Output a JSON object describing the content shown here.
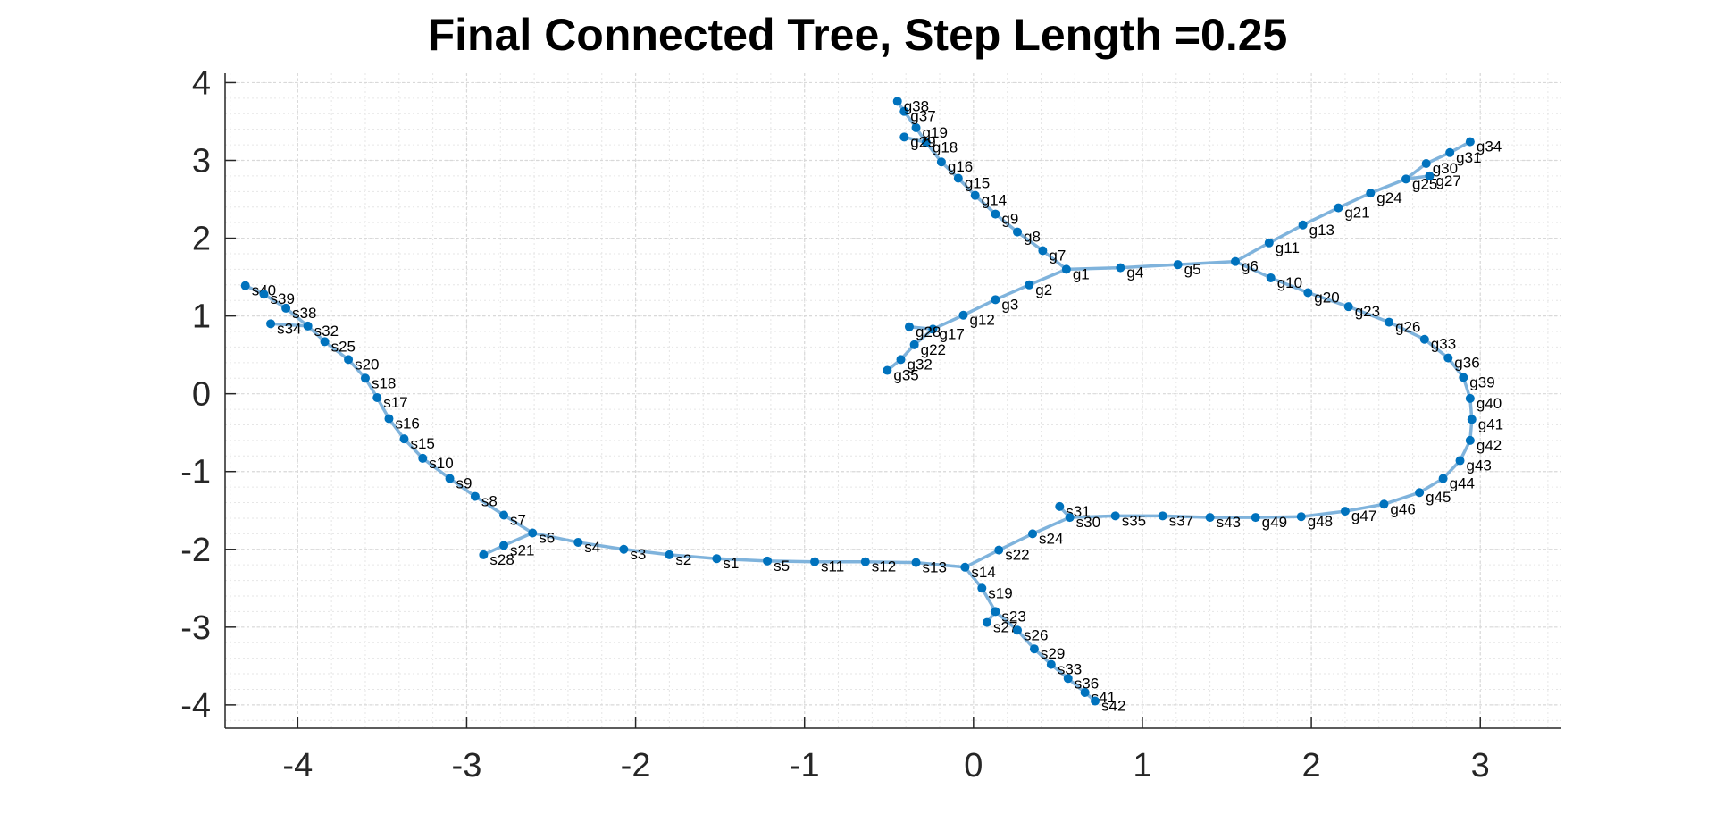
{
  "chart_data": {
    "type": "scatter",
    "title": "Final Connected Tree, Step Length =0.25",
    "xlabel": "",
    "ylabel": "",
    "xlim": [
      -4.43,
      3.48
    ],
    "ylim": [
      -4.3,
      4.12
    ],
    "xticks": [
      -4,
      -3,
      -2,
      -1,
      0,
      1,
      2,
      3
    ],
    "yticks": [
      -4,
      -3,
      -2,
      -1,
      0,
      1,
      2,
      3,
      4
    ],
    "grid": "on",
    "minor_grid": "on",
    "colors": {
      "node": "#0072BD",
      "edge": "#7FB3DC",
      "grid": "#E6E6E6",
      "axis": "#262626"
    },
    "nodes": [
      {
        "name": "s40",
        "x": -4.31,
        "y": 1.39
      },
      {
        "name": "s39",
        "x": -4.2,
        "y": 1.28
      },
      {
        "name": "s38",
        "x": -4.07,
        "y": 1.1
      },
      {
        "name": "s34",
        "x": -4.16,
        "y": 0.9
      },
      {
        "name": "s32",
        "x": -3.94,
        "y": 0.87
      },
      {
        "name": "s25",
        "x": -3.84,
        "y": 0.67
      },
      {
        "name": "s20",
        "x": -3.7,
        "y": 0.44
      },
      {
        "name": "s18",
        "x": -3.6,
        "y": 0.2
      },
      {
        "name": "s17",
        "x": -3.53,
        "y": -0.05
      },
      {
        "name": "s16",
        "x": -3.46,
        "y": -0.32
      },
      {
        "name": "s15",
        "x": -3.37,
        "y": -0.58
      },
      {
        "name": "s10",
        "x": -3.26,
        "y": -0.83
      },
      {
        "name": "s9",
        "x": -3.1,
        "y": -1.09
      },
      {
        "name": "s8",
        "x": -2.95,
        "y": -1.32
      },
      {
        "name": "s7",
        "x": -2.78,
        "y": -1.56
      },
      {
        "name": "s6",
        "x": -2.61,
        "y": -1.79
      },
      {
        "name": "s21",
        "x": -2.78,
        "y": -1.95
      },
      {
        "name": "s28",
        "x": -2.9,
        "y": -2.07
      },
      {
        "name": "s4",
        "x": -2.34,
        "y": -1.91
      },
      {
        "name": "s3",
        "x": -2.07,
        "y": -2.0
      },
      {
        "name": "s2",
        "x": -1.8,
        "y": -2.07
      },
      {
        "name": "s1",
        "x": -1.52,
        "y": -2.12
      },
      {
        "name": "s5",
        "x": -1.22,
        "y": -2.15
      },
      {
        "name": "s11",
        "x": -0.94,
        "y": -2.16
      },
      {
        "name": "s12",
        "x": -0.64,
        "y": -2.16
      },
      {
        "name": "s13",
        "x": -0.34,
        "y": -2.17
      },
      {
        "name": "s14",
        "x": -0.05,
        "y": -2.23
      },
      {
        "name": "s19",
        "x": 0.05,
        "y": -2.5
      },
      {
        "name": "s23",
        "x": 0.13,
        "y": -2.8
      },
      {
        "name": "s27",
        "x": 0.08,
        "y": -2.94
      },
      {
        "name": "s26",
        "x": 0.26,
        "y": -3.04
      },
      {
        "name": "s29",
        "x": 0.36,
        "y": -3.28
      },
      {
        "name": "s33",
        "x": 0.46,
        "y": -3.48
      },
      {
        "name": "s36",
        "x": 0.56,
        "y": -3.66
      },
      {
        "name": "s41",
        "x": 0.66,
        "y": -3.84
      },
      {
        "name": "s42",
        "x": 0.72,
        "y": -3.95
      },
      {
        "name": "s22",
        "x": 0.15,
        "y": -2.01
      },
      {
        "name": "s24",
        "x": 0.35,
        "y": -1.8
      },
      {
        "name": "s31",
        "x": 0.51,
        "y": -1.45
      },
      {
        "name": "s30",
        "x": 0.57,
        "y": -1.59
      },
      {
        "name": "s35",
        "x": 0.84,
        "y": -1.57
      },
      {
        "name": "s37",
        "x": 1.12,
        "y": -1.57
      },
      {
        "name": "s43",
        "x": 1.4,
        "y": -1.59
      },
      {
        "name": "g49",
        "x": 1.67,
        "y": -1.59
      },
      {
        "name": "g48",
        "x": 1.94,
        "y": -1.58
      },
      {
        "name": "g47",
        "x": 2.2,
        "y": -1.51
      },
      {
        "name": "g46",
        "x": 2.43,
        "y": -1.42
      },
      {
        "name": "g45",
        "x": 2.64,
        "y": -1.27
      },
      {
        "name": "g44",
        "x": 2.78,
        "y": -1.09
      },
      {
        "name": "g43",
        "x": 2.88,
        "y": -0.86
      },
      {
        "name": "g42",
        "x": 2.94,
        "y": -0.6
      },
      {
        "name": "g41",
        "x": 2.95,
        "y": -0.33
      },
      {
        "name": "g40",
        "x": 2.94,
        "y": -0.06
      },
      {
        "name": "g39",
        "x": 2.9,
        "y": 0.21
      },
      {
        "name": "g36",
        "x": 2.81,
        "y": 0.46
      },
      {
        "name": "g33",
        "x": 2.67,
        "y": 0.7
      },
      {
        "name": "g26",
        "x": 2.46,
        "y": 0.92
      },
      {
        "name": "g23",
        "x": 2.22,
        "y": 1.12
      },
      {
        "name": "g20",
        "x": 1.98,
        "y": 1.3
      },
      {
        "name": "g10",
        "x": 1.76,
        "y": 1.49
      },
      {
        "name": "g6",
        "x": 1.55,
        "y": 1.7
      },
      {
        "name": "g5",
        "x": 1.21,
        "y": 1.66
      },
      {
        "name": "g4",
        "x": 0.87,
        "y": 1.62
      },
      {
        "name": "g1",
        "x": 0.55,
        "y": 1.6
      },
      {
        "name": "g2",
        "x": 0.33,
        "y": 1.4
      },
      {
        "name": "g3",
        "x": 0.13,
        "y": 1.21
      },
      {
        "name": "g12",
        "x": -0.06,
        "y": 1.01
      },
      {
        "name": "g17",
        "x": -0.24,
        "y": 0.83
      },
      {
        "name": "g28",
        "x": -0.38,
        "y": 0.86
      },
      {
        "name": "g22",
        "x": -0.35,
        "y": 0.63
      },
      {
        "name": "g32",
        "x": -0.43,
        "y": 0.44
      },
      {
        "name": "g35",
        "x": -0.51,
        "y": 0.3
      },
      {
        "name": "g7",
        "x": 0.41,
        "y": 1.84
      },
      {
        "name": "g8",
        "x": 0.26,
        "y": 2.08
      },
      {
        "name": "g9",
        "x": 0.13,
        "y": 2.31
      },
      {
        "name": "g14",
        "x": 0.01,
        "y": 2.55
      },
      {
        "name": "g15",
        "x": -0.09,
        "y": 2.77
      },
      {
        "name": "g16",
        "x": -0.19,
        "y": 2.98
      },
      {
        "name": "g18",
        "x": -0.28,
        "y": 3.23
      },
      {
        "name": "g29",
        "x": -0.41,
        "y": 3.3
      },
      {
        "name": "g19",
        "x": -0.34,
        "y": 3.42
      },
      {
        "name": "g37",
        "x": -0.41,
        "y": 3.63
      },
      {
        "name": "g38",
        "x": -0.45,
        "y": 3.76
      },
      {
        "name": "g11",
        "x": 1.75,
        "y": 1.94
      },
      {
        "name": "g13",
        "x": 1.95,
        "y": 2.17
      },
      {
        "name": "g21",
        "x": 2.16,
        "y": 2.39
      },
      {
        "name": "g24",
        "x": 2.35,
        "y": 2.58
      },
      {
        "name": "g25",
        "x": 2.56,
        "y": 2.76
      },
      {
        "name": "g27",
        "x": 2.7,
        "y": 2.8
      },
      {
        "name": "g30",
        "x": 2.68,
        "y": 2.96
      },
      {
        "name": "g31",
        "x": 2.82,
        "y": 3.1
      },
      {
        "name": "g34",
        "x": 2.94,
        "y": 3.24
      }
    ],
    "edges": [
      [
        "s40",
        "s39"
      ],
      [
        "s39",
        "s38"
      ],
      [
        "s38",
        "s32"
      ],
      [
        "s34",
        "s32"
      ],
      [
        "s32",
        "s25"
      ],
      [
        "s25",
        "s20"
      ],
      [
        "s20",
        "s18"
      ],
      [
        "s18",
        "s17"
      ],
      [
        "s17",
        "s16"
      ],
      [
        "s16",
        "s15"
      ],
      [
        "s15",
        "s10"
      ],
      [
        "s10",
        "s9"
      ],
      [
        "s9",
        "s8"
      ],
      [
        "s8",
        "s7"
      ],
      [
        "s7",
        "s6"
      ],
      [
        "s6",
        "s21"
      ],
      [
        "s21",
        "s28"
      ],
      [
        "s6",
        "s4"
      ],
      [
        "s4",
        "s3"
      ],
      [
        "s3",
        "s2"
      ],
      [
        "s2",
        "s1"
      ],
      [
        "s1",
        "s5"
      ],
      [
        "s5",
        "s11"
      ],
      [
        "s11",
        "s12"
      ],
      [
        "s12",
        "s13"
      ],
      [
        "s13",
        "s14"
      ],
      [
        "s14",
        "s19"
      ],
      [
        "s19",
        "s23"
      ],
      [
        "s23",
        "s27"
      ],
      [
        "s23",
        "s26"
      ],
      [
        "s26",
        "s29"
      ],
      [
        "s29",
        "s33"
      ],
      [
        "s33",
        "s36"
      ],
      [
        "s36",
        "s41"
      ],
      [
        "s41",
        "s42"
      ],
      [
        "s14",
        "s22"
      ],
      [
        "s22",
        "s24"
      ],
      [
        "s24",
        "s30"
      ],
      [
        "s30",
        "s31"
      ],
      [
        "s30",
        "s35"
      ],
      [
        "s35",
        "s37"
      ],
      [
        "s37",
        "s43"
      ],
      [
        "s43",
        "g49"
      ],
      [
        "g49",
        "g48"
      ],
      [
        "g48",
        "g47"
      ],
      [
        "g47",
        "g46"
      ],
      [
        "g46",
        "g45"
      ],
      [
        "g45",
        "g44"
      ],
      [
        "g44",
        "g43"
      ],
      [
        "g43",
        "g42"
      ],
      [
        "g42",
        "g41"
      ],
      [
        "g41",
        "g40"
      ],
      [
        "g40",
        "g39"
      ],
      [
        "g39",
        "g36"
      ],
      [
        "g36",
        "g33"
      ],
      [
        "g33",
        "g26"
      ],
      [
        "g26",
        "g23"
      ],
      [
        "g23",
        "g20"
      ],
      [
        "g20",
        "g10"
      ],
      [
        "g10",
        "g6"
      ],
      [
        "g6",
        "g5"
      ],
      [
        "g5",
        "g4"
      ],
      [
        "g4",
        "g1"
      ],
      [
        "g1",
        "g2"
      ],
      [
        "g2",
        "g3"
      ],
      [
        "g3",
        "g12"
      ],
      [
        "g12",
        "g17"
      ],
      [
        "g17",
        "g28"
      ],
      [
        "g17",
        "g22"
      ],
      [
        "g22",
        "g32"
      ],
      [
        "g32",
        "g35"
      ],
      [
        "g1",
        "g7"
      ],
      [
        "g7",
        "g8"
      ],
      [
        "g8",
        "g9"
      ],
      [
        "g9",
        "g14"
      ],
      [
        "g14",
        "g15"
      ],
      [
        "g15",
        "g16"
      ],
      [
        "g16",
        "g18"
      ],
      [
        "g18",
        "g29"
      ],
      [
        "g18",
        "g19"
      ],
      [
        "g19",
        "g37"
      ],
      [
        "g37",
        "g38"
      ],
      [
        "g6",
        "g11"
      ],
      [
        "g11",
        "g13"
      ],
      [
        "g13",
        "g21"
      ],
      [
        "g21",
        "g24"
      ],
      [
        "g24",
        "g25"
      ],
      [
        "g25",
        "g27"
      ],
      [
        "g25",
        "g30"
      ],
      [
        "g30",
        "g31"
      ],
      [
        "g31",
        "g34"
      ]
    ]
  }
}
